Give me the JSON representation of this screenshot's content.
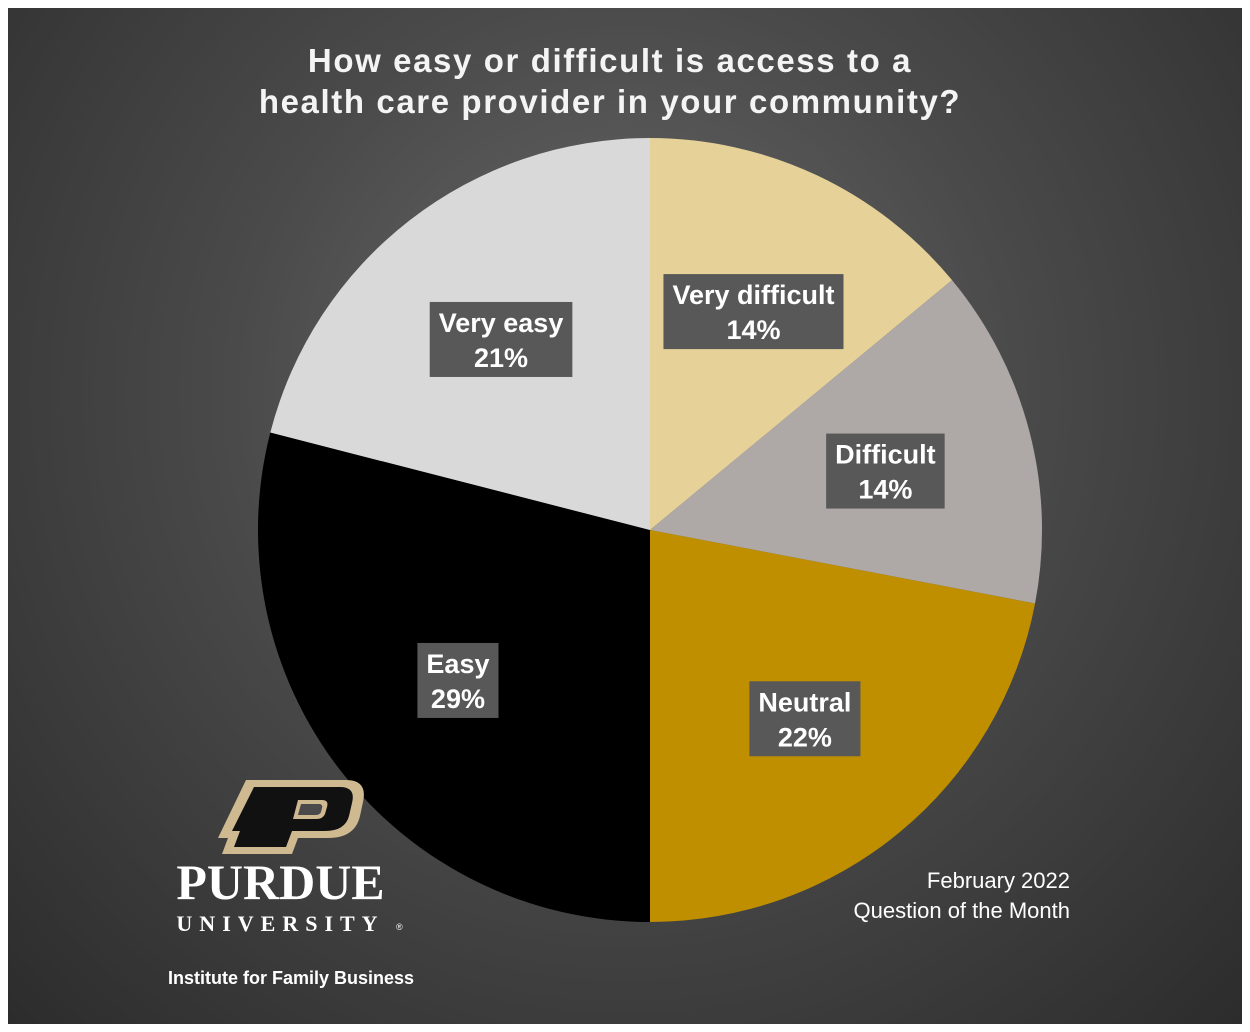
{
  "chart_data": {
    "type": "pie",
    "title": "How easy or difficult is access to a\nhealth care provider in your community?",
    "slices": [
      {
        "label": "Very difficult",
        "value": 14,
        "value_label": "14%",
        "color": "#e6d199"
      },
      {
        "label": "Difficult",
        "value": 14,
        "value_label": "14%",
        "color": "#aea9a6"
      },
      {
        "label": "Neutral",
        "value": 22,
        "value_label": "22%",
        "color": "#bf8f00"
      },
      {
        "label": "Easy",
        "value": 29,
        "value_label": "29%",
        "color": "#000000"
      },
      {
        "label": "Very easy",
        "value": 21,
        "value_label": "21%",
        "color": "#d9d9d9"
      }
    ],
    "start_angle": "12 o'clock",
    "direction": "clockwise",
    "legend": "none",
    "data_labels": "inside slices, boxed"
  },
  "branding": {
    "logo_name": "Purdue P logo",
    "purdue": "PURDUE",
    "university": "UNIVERSITY",
    "institute": "Institute for Family Business",
    "gold": "#cfb991",
    "black": "#000000"
  },
  "footer": {
    "date": "February 2022",
    "series": "Question of the Month"
  }
}
